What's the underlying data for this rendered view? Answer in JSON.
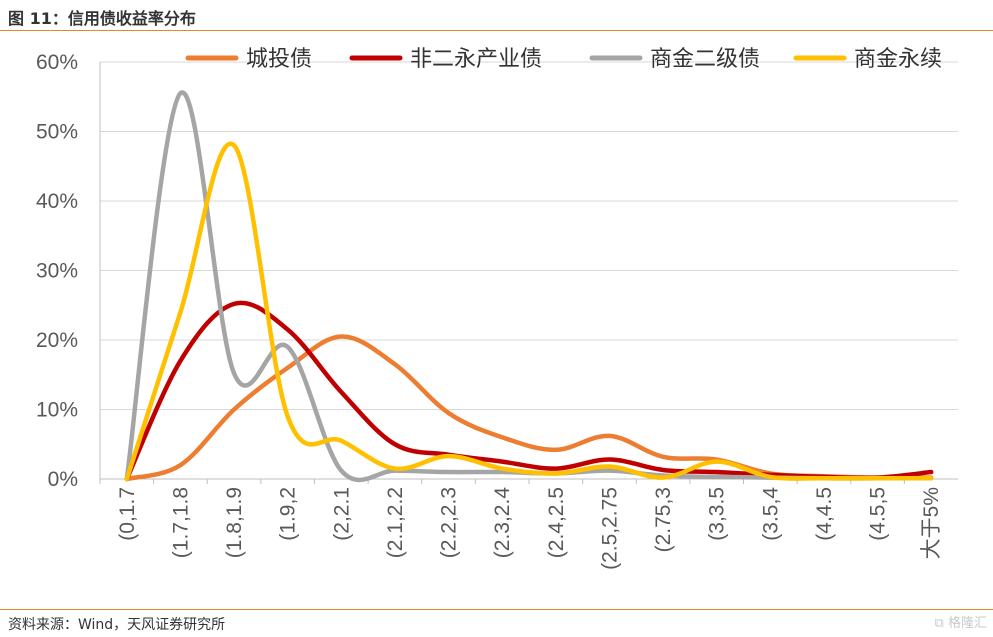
{
  "figure": {
    "title": "图 11：信用债收益率分布",
    "source": "资料来源：Wind，天风证券研究所",
    "watermark": "格隆汇"
  },
  "chart_data": {
    "type": "line",
    "title": "",
    "xlabel": "",
    "ylabel": "",
    "categories": [
      "(0,1.7",
      "(1.7,1.8",
      "(1.8,1.9",
      "(1.9,2",
      "(2,2.1",
      "(2.1,2.2",
      "(2.2,2.3",
      "(2.3,2.4",
      "(2.4,2.5",
      "(2.5,2.75",
      "(2.75,3",
      "(3,3.5",
      "(3.5,4",
      "(4,4.5",
      "(4.5,5",
      "大于5%"
    ],
    "y_ticks": [
      "0%",
      "10%",
      "20%",
      "30%",
      "40%",
      "50%",
      "60%"
    ],
    "ylim": [
      0,
      60
    ],
    "grid": true,
    "legend_position": "top",
    "series": [
      {
        "name": "城投债",
        "color": "#ed7d31",
        "values": [
          0,
          2,
          10,
          16,
          20.5,
          16.5,
          9.5,
          6,
          4.2,
          6.2,
          3.2,
          2.8,
          0.8,
          0.4,
          0.2,
          0.2
        ]
      },
      {
        "name": "非二永产业债",
        "color": "#c00000",
        "values": [
          0,
          17,
          25.2,
          21.5,
          12.5,
          5,
          3.5,
          2.5,
          1.5,
          2.8,
          1.3,
          1.0,
          0.6,
          0.3,
          0.2,
          1.0
        ]
      },
      {
        "name": "商金二级债",
        "color": "#a5a5a5",
        "values": [
          0,
          55.5,
          15.2,
          19,
          1.2,
          1.2,
          1.0,
          1.0,
          0.8,
          1.2,
          0.5,
          0.3,
          0.2,
          0.1,
          0.1,
          0.1
        ]
      },
      {
        "name": "商金永续",
        "color": "#ffc000",
        "values": [
          0,
          24,
          48,
          9,
          5.5,
          1.5,
          3.3,
          1.5,
          0.8,
          1.8,
          0.2,
          2.5,
          0.3,
          0.1,
          0.1,
          0.1
        ]
      }
    ]
  }
}
